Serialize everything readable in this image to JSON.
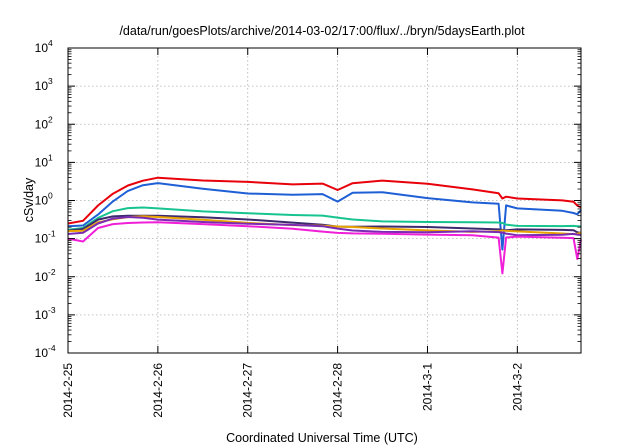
{
  "chart_data": {
    "type": "line",
    "title": "/data/run/goesPlots/archive/2014-03-02/17:00/flux/../bryn/5daysEarth.plot",
    "xlabel": "Coordinated Universal Time (UTC)",
    "ylabel": "cSv/day",
    "yscale": "log",
    "ylim": [
      0.0001,
      10000
    ],
    "xlim": [
      "2014-02-25 00:00",
      "2014-03-02 17:00"
    ],
    "x_tick_labels": [
      "2014-2-25",
      "2014-2-26",
      "2014-2-27",
      "2014-2-28",
      "2014-3-1",
      "2014-3-2"
    ],
    "y_ticks": [
      {
        "base": "10",
        "exp": "-4",
        "value": 0.0001
      },
      {
        "base": "10",
        "exp": "-3",
        "value": 0.001
      },
      {
        "base": "10",
        "exp": "-2",
        "value": 0.01
      },
      {
        "base": "10",
        "exp": "-1",
        "value": 0.1
      },
      {
        "base": "10",
        "exp": "0",
        "value": 1
      },
      {
        "base": "10",
        "exp": "1",
        "value": 10
      },
      {
        "base": "10",
        "exp": "2",
        "value": 100
      },
      {
        "base": "10",
        "exp": "3",
        "value": 1000
      },
      {
        "base": "10",
        "exp": "4",
        "value": 10000
      }
    ],
    "grid": true,
    "x_dates": [
      "2014-02-25 00:00",
      "2014-02-25 04:00",
      "2014-02-25 08:00",
      "2014-02-25 12:00",
      "2014-02-25 16:00",
      "2014-02-25 20:00",
      "2014-02-26 00:00",
      "2014-02-26 12:00",
      "2014-02-27 00:00",
      "2014-02-27 12:00",
      "2014-02-27 20:00",
      "2014-02-28 00:00",
      "2014-02-28 04:00",
      "2014-02-28 12:00",
      "2014-03-01 00:00",
      "2014-03-01 12:00",
      "2014-03-01 19:00",
      "2014-03-01 20:00",
      "2014-03-01 21:00",
      "2014-03-02 00:00",
      "2014-03-02 12:00",
      "2014-03-02 15:00",
      "2014-03-02 16:00",
      "2014-03-02 17:00"
    ],
    "series": [
      {
        "color": "#e8000b",
        "values": [
          0.25,
          0.28,
          0.7,
          1.5,
          2.6,
          3.5,
          4.0,
          3.2,
          2.9,
          2.6,
          2.9,
          2.0,
          2.9,
          3.2,
          2.6,
          1.9,
          1.6,
          1.2,
          1.3,
          1.1,
          0.95,
          0.9,
          0.75,
          0.7
        ]
      },
      {
        "color": "#1f5fd6",
        "values": [
          0.2,
          0.22,
          0.45,
          1.0,
          1.8,
          2.4,
          2.7,
          2.0,
          1.6,
          1.5,
          1.5,
          0.9,
          1.5,
          1.6,
          1.2,
          0.95,
          0.85,
          0.05,
          0.7,
          0.6,
          0.55,
          0.5,
          0.45,
          0.55
        ]
      },
      {
        "color": "#17c48f",
        "values": [
          0.18,
          0.2,
          0.35,
          0.5,
          0.6,
          0.65,
          0.65,
          0.55,
          0.47,
          0.4,
          0.38,
          0.35,
          0.33,
          0.3,
          0.28,
          0.26,
          0.25,
          0.25,
          0.24,
          0.23,
          0.22,
          0.21,
          0.2,
          0.2
        ]
      },
      {
        "color": "#3d2a6e",
        "values": [
          0.16,
          0.17,
          0.3,
          0.38,
          0.42,
          0.42,
          0.4,
          0.35,
          0.3,
          0.26,
          0.24,
          0.22,
          0.21,
          0.2,
          0.19,
          0.18,
          0.18,
          0.18,
          0.17,
          0.17,
          0.16,
          0.16,
          0.15,
          0.15
        ]
      },
      {
        "color": "#e8a200",
        "values": [
          0.15,
          0.16,
          0.28,
          0.34,
          0.37,
          0.37,
          0.35,
          0.31,
          0.27,
          0.24,
          0.22,
          0.2,
          0.19,
          0.18,
          0.17,
          0.16,
          0.16,
          0.16,
          0.15,
          0.15,
          0.14,
          0.14,
          0.14,
          0.14
        ]
      },
      {
        "color": "#7a2bb3",
        "values": [
          0.14,
          0.15,
          0.25,
          0.32,
          0.35,
          0.35,
          0.33,
          0.29,
          0.25,
          0.22,
          0.2,
          0.18,
          0.17,
          0.16,
          0.15,
          0.15,
          0.14,
          0.14,
          0.14,
          0.13,
          0.13,
          0.13,
          0.12,
          0.12
        ]
      },
      {
        "color": "#f01fd8",
        "values": [
          0.1,
          0.08,
          0.18,
          0.24,
          0.27,
          0.28,
          0.27,
          0.23,
          0.2,
          0.18,
          0.16,
          0.15,
          0.14,
          0.13,
          0.12,
          0.12,
          0.11,
          0.013,
          0.11,
          0.11,
          0.1,
          0.1,
          0.03,
          0.1
        ]
      }
    ]
  }
}
